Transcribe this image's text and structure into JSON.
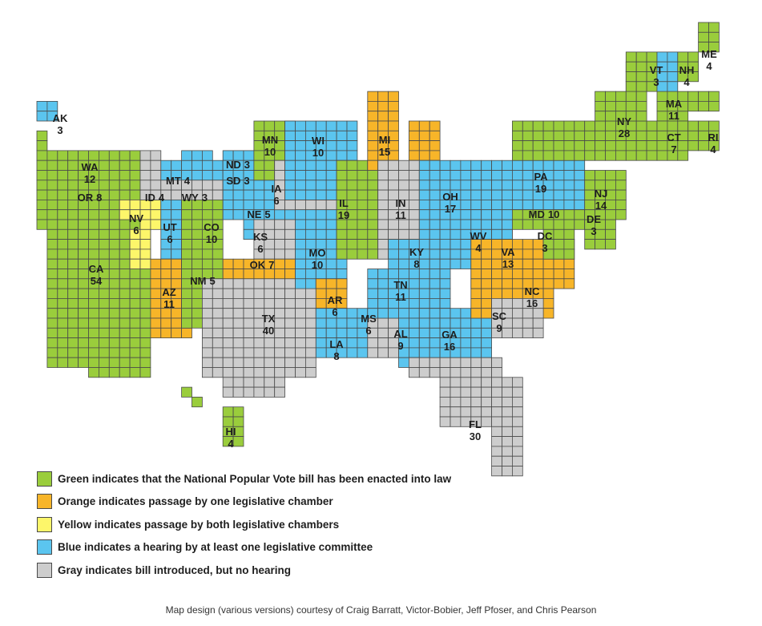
{
  "colors": {
    "green": "#9acd3c",
    "orange": "#f7b529",
    "yellow": "#fdf66a",
    "blue": "#5bc5ef",
    "gray": "#cdcdcd"
  },
  "states": [
    {
      "abbr": "AK",
      "votes": "3",
      "status": "blue"
    },
    {
      "abbr": "HI",
      "votes": "4",
      "status": "green"
    },
    {
      "abbr": "WA",
      "votes": "12",
      "status": "green"
    },
    {
      "abbr": "OR",
      "votes": "8",
      "status": "green"
    },
    {
      "abbr": "CA",
      "votes": "54",
      "status": "green"
    },
    {
      "abbr": "NV",
      "votes": "6",
      "status": "yellow"
    },
    {
      "abbr": "ID",
      "votes": "4",
      "status": "gray"
    },
    {
      "abbr": "MT",
      "votes": "4",
      "status": "blue"
    },
    {
      "abbr": "WY",
      "votes": "3",
      "status": "gray"
    },
    {
      "abbr": "UT",
      "votes": "6",
      "status": "blue"
    },
    {
      "abbr": "AZ",
      "votes": "11",
      "status": "orange"
    },
    {
      "abbr": "CO",
      "votes": "10",
      "status": "green"
    },
    {
      "abbr": "NM",
      "votes": "5",
      "status": "green"
    },
    {
      "abbr": "ND",
      "votes": "3",
      "status": "blue"
    },
    {
      "abbr": "SD",
      "votes": "3",
      "status": "blue"
    },
    {
      "abbr": "NE",
      "votes": "5",
      "status": "blue"
    },
    {
      "abbr": "KS",
      "votes": "6",
      "status": "gray"
    },
    {
      "abbr": "OK",
      "votes": "7",
      "status": "orange"
    },
    {
      "abbr": "TX",
      "votes": "40",
      "status": "gray"
    },
    {
      "abbr": "MN",
      "votes": "10",
      "status": "green"
    },
    {
      "abbr": "IA",
      "votes": "6",
      "status": "gray"
    },
    {
      "abbr": "MO",
      "votes": "10",
      "status": "blue"
    },
    {
      "abbr": "AR",
      "votes": "6",
      "status": "orange"
    },
    {
      "abbr": "LA",
      "votes": "8",
      "status": "blue"
    },
    {
      "abbr": "WI",
      "votes": "10",
      "status": "blue"
    },
    {
      "abbr": "IL",
      "votes": "19",
      "status": "green"
    },
    {
      "abbr": "MS",
      "votes": "6",
      "status": "gray"
    },
    {
      "abbr": "MI",
      "votes": "15",
      "status": "orange"
    },
    {
      "abbr": "IN",
      "votes": "11",
      "status": "gray"
    },
    {
      "abbr": "KY",
      "votes": "8",
      "status": "blue"
    },
    {
      "abbr": "TN",
      "votes": "11",
      "status": "blue"
    },
    {
      "abbr": "AL",
      "votes": "9",
      "status": "blue"
    },
    {
      "abbr": "OH",
      "votes": "17",
      "status": "blue"
    },
    {
      "abbr": "GA",
      "votes": "16",
      "status": "blue"
    },
    {
      "abbr": "FL",
      "votes": "30",
      "status": "gray"
    },
    {
      "abbr": "WV",
      "votes": "4",
      "status": "blue"
    },
    {
      "abbr": "VA",
      "votes": "13",
      "status": "orange"
    },
    {
      "abbr": "NC",
      "votes": "16",
      "status": "orange"
    },
    {
      "abbr": "SC",
      "votes": "9",
      "status": "gray"
    },
    {
      "abbr": "PA",
      "votes": "19",
      "status": "blue"
    },
    {
      "abbr": "MD",
      "votes": "10",
      "status": "green"
    },
    {
      "abbr": "DC",
      "votes": "3",
      "status": "green"
    },
    {
      "abbr": "DE",
      "votes": "3",
      "status": "green"
    },
    {
      "abbr": "NJ",
      "votes": "14",
      "status": "green"
    },
    {
      "abbr": "NY",
      "votes": "28",
      "status": "green"
    },
    {
      "abbr": "CT",
      "votes": "7",
      "status": "green"
    },
    {
      "abbr": "RI",
      "votes": "4",
      "status": "green"
    },
    {
      "abbr": "MA",
      "votes": "11",
      "status": "green"
    },
    {
      "abbr": "VT",
      "votes": "3",
      "status": "green"
    },
    {
      "abbr": "NH",
      "votes": "4",
      "status": "blue"
    },
    {
      "abbr": "ME",
      "votes": "4",
      "status": "green"
    }
  ],
  "legend": [
    {
      "color": "green",
      "text": "Green indicates that the National Popular Vote bill has been enacted into law"
    },
    {
      "color": "orange",
      "text": "Orange indicates passage by one legislative chamber"
    },
    {
      "color": "yellow",
      "text": "Yellow indicates passage by both legislative chambers"
    },
    {
      "color": "blue",
      "text": "Blue indicates a hearing by at least one legislative committee"
    },
    {
      "color": "gray",
      "text": "Gray indicates bill introduced, but no hearing"
    }
  ],
  "credit": "Map design (various versions) courtesy of Craig Barratt, Victor-Bobier, Jeff Pfoser, and Chris Pearson"
}
